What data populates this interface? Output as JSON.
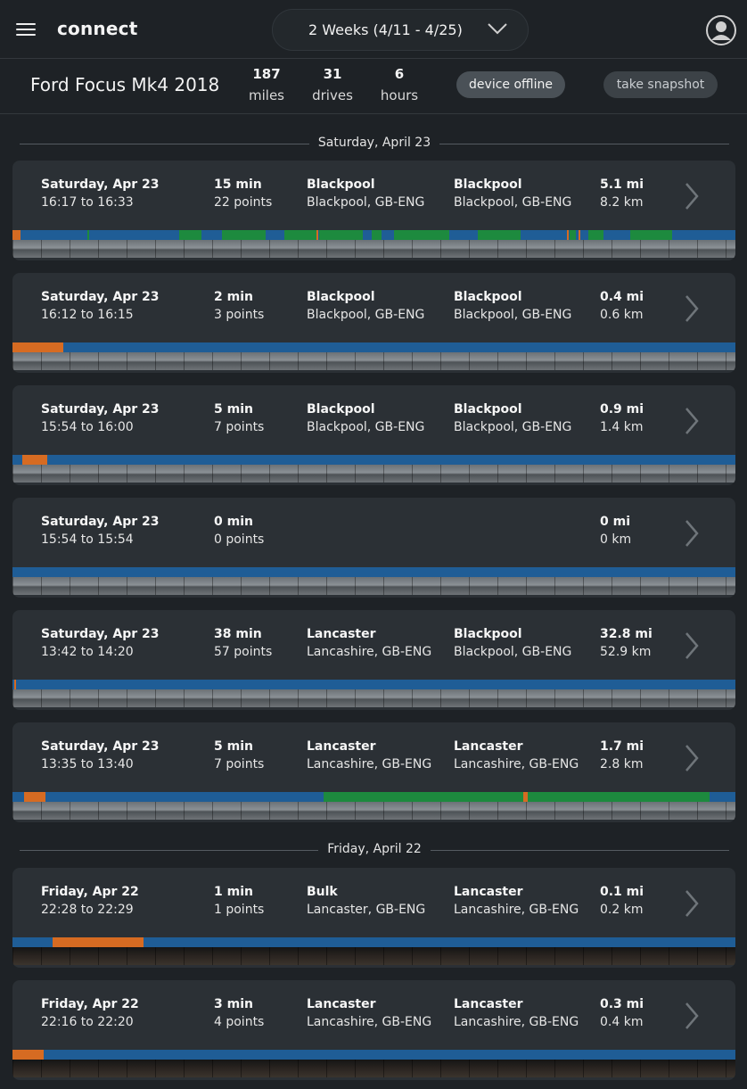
{
  "header": {
    "brand": "connect",
    "date_range": "2 Weeks (4/11 - 4/25)"
  },
  "device": {
    "name": "Ford Focus Mk4 2018",
    "stats": {
      "miles_value": "187",
      "miles_label": "miles",
      "drives_value": "31",
      "drives_label": "drives",
      "hours_value": "6",
      "hours_label": "hours"
    },
    "status_badge": "device offline",
    "snapshot_button": "take snapshot"
  },
  "days": [
    "Saturday, April 23",
    "Friday, April 22"
  ],
  "drives": [
    {
      "date": "Saturday, Apr 23",
      "time": "16:17 to 16:33",
      "duration": "15 min",
      "points": "22 points",
      "start_place": "Blackpool",
      "start_region": "Blackpool, GB-ENG",
      "end_place": "Blackpool",
      "end_region": "Blackpool, GB-ENG",
      "dist_mi": "5.1 mi",
      "dist_km": "8.2 km",
      "segments": [
        {
          "type": "orange",
          "start": 0,
          "end": 0.011
        },
        {
          "type": "green",
          "start": 0.104,
          "end": 0.106
        },
        {
          "type": "green",
          "start": 0.23,
          "end": 0.262
        },
        {
          "type": "green",
          "start": 0.29,
          "end": 0.35
        },
        {
          "type": "green",
          "start": 0.376,
          "end": 0.42
        },
        {
          "type": "orange",
          "start": 0.421,
          "end": 0.423
        },
        {
          "type": "green",
          "start": 0.424,
          "end": 0.485
        },
        {
          "type": "green",
          "start": 0.497,
          "end": 0.51
        },
        {
          "type": "green",
          "start": 0.528,
          "end": 0.604
        },
        {
          "type": "green",
          "start": 0.644,
          "end": 0.703
        },
        {
          "type": "orange",
          "start": 0.767,
          "end": 0.77
        },
        {
          "type": "green",
          "start": 0.771,
          "end": 0.779
        },
        {
          "type": "orange",
          "start": 0.783,
          "end": 0.786
        },
        {
          "type": "green",
          "start": 0.797,
          "end": 0.818
        },
        {
          "type": "green",
          "start": 0.855,
          "end": 0.913
        }
      ],
      "night": false
    },
    {
      "date": "Saturday, Apr 23",
      "time": "16:12 to 16:15",
      "duration": "2 min",
      "points": "3 points",
      "start_place": "Blackpool",
      "start_region": "Blackpool, GB-ENG",
      "end_place": "Blackpool",
      "end_region": "Blackpool, GB-ENG",
      "dist_mi": "0.4 mi",
      "dist_km": "0.6 km",
      "segments": [
        {
          "type": "orange",
          "start": 0,
          "end": 0.07
        }
      ],
      "night": false
    },
    {
      "date": "Saturday, Apr 23",
      "time": "15:54 to 16:00",
      "duration": "5 min",
      "points": "7 points",
      "start_place": "Blackpool",
      "start_region": "Blackpool, GB-ENG",
      "end_place": "Blackpool",
      "end_region": "Blackpool, GB-ENG",
      "dist_mi": "0.9 mi",
      "dist_km": "1.4 km",
      "segments": [
        {
          "type": "orange",
          "start": 0.014,
          "end": 0.048
        }
      ],
      "night": false
    },
    {
      "date": "Saturday, Apr 23",
      "time": "15:54 to 15:54",
      "duration": "0 min",
      "points": "0 points",
      "start_place": "",
      "start_region": "",
      "end_place": "",
      "end_region": "",
      "dist_mi": "0 mi",
      "dist_km": "0 km",
      "segments": [],
      "night": false
    },
    {
      "date": "Saturday, Apr 23",
      "time": "13:42 to 14:20",
      "duration": "38 min",
      "points": "57 points",
      "start_place": "Lancaster",
      "start_region": "Lancashire, GB-ENG",
      "end_place": "Blackpool",
      "end_region": "Blackpool, GB-ENG",
      "dist_mi": "32.8 mi",
      "dist_km": "52.9 km",
      "segments": [
        {
          "type": "orange",
          "start": 0.002,
          "end": 0.005
        }
      ],
      "night": false
    },
    {
      "date": "Saturday, Apr 23",
      "time": "13:35 to 13:40",
      "duration": "5 min",
      "points": "7 points",
      "start_place": "Lancaster",
      "start_region": "Lancashire, GB-ENG",
      "end_place": "Lancaster",
      "end_region": "Lancashire, GB-ENG",
      "dist_mi": "1.7 mi",
      "dist_km": "2.8 km",
      "segments": [
        {
          "type": "orange",
          "start": 0.016,
          "end": 0.046
        },
        {
          "type": "green",
          "start": 0.43,
          "end": 0.707
        },
        {
          "type": "orange",
          "start": 0.707,
          "end": 0.713
        },
        {
          "type": "green",
          "start": 0.713,
          "end": 0.964
        }
      ],
      "night": false
    },
    {
      "date": "Friday, Apr 22",
      "time": "22:28 to 22:29",
      "duration": "1 min",
      "points": "1 points",
      "start_place": "Bulk",
      "start_region": "Lancaster, GB-ENG",
      "end_place": "Lancaster",
      "end_region": "Lancashire, GB-ENG",
      "dist_mi": "0.1 mi",
      "dist_km": "0.2 km",
      "segments": [
        {
          "type": "orange",
          "start": 0.055,
          "end": 0.181
        }
      ],
      "night": true
    },
    {
      "date": "Friday, Apr 22",
      "time": "22:16 to 22:20",
      "duration": "3 min",
      "points": "4 points",
      "start_place": "Lancaster",
      "start_region": "Lancashire, GB-ENG",
      "end_place": "Lancaster",
      "end_region": "Lancashire, GB-ENG",
      "dist_mi": "0.3 mi",
      "dist_km": "0.4 km",
      "segments": [
        {
          "type": "orange",
          "start": 0,
          "end": 0.043
        }
      ],
      "night": true
    }
  ],
  "colors": {
    "timeline_base": "#1f5d96",
    "orange": "#d66b22",
    "green": "#1d8a3e"
  }
}
